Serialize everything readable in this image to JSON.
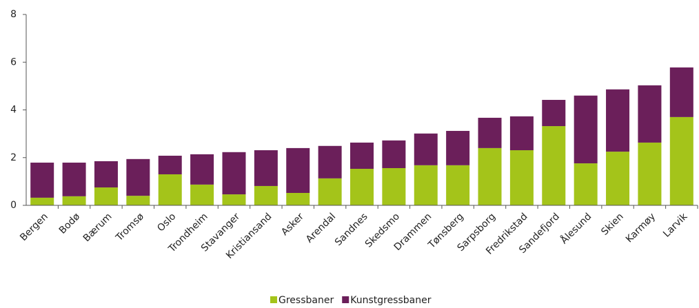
{
  "chart_data": {
    "type": "stacked_bar",
    "categories": [
      "Bergen",
      "Bodø",
      "Bærum",
      "Tromsø",
      "Oslo",
      "Trondheim",
      "Stavanger",
      "Kristiansand",
      "Asker",
      "Arendal",
      "Sandnes",
      "Skedsmo",
      "Drammen",
      "Tønsberg",
      "Sarpsborg",
      "Fredrikstad",
      "Sandefjord",
      "Ålesund",
      "Skien",
      "Karmøy",
      "Larvik"
    ],
    "series": [
      {
        "name": "Gressbaner",
        "color": "#a4c41a",
        "values": [
          0.32,
          0.38,
          0.75,
          0.4,
          1.3,
          0.87,
          0.46,
          0.81,
          0.52,
          1.13,
          1.53,
          1.56,
          1.68,
          1.68,
          2.4,
          2.31,
          3.32,
          1.76,
          2.25,
          2.63,
          3.7
        ]
      },
      {
        "name": "Kunstgressbaner",
        "color": "#6b1f5a",
        "values": [
          1.47,
          1.41,
          1.1,
          1.54,
          0.78,
          1.27,
          1.77,
          1.5,
          1.88,
          1.36,
          1.1,
          1.16,
          1.33,
          1.44,
          1.27,
          1.42,
          1.1,
          2.84,
          2.61,
          2.4,
          2.08
        ]
      }
    ],
    "ylim": [
      0,
      8
    ],
    "yticks": [
      0,
      2,
      4,
      6,
      8
    ]
  }
}
